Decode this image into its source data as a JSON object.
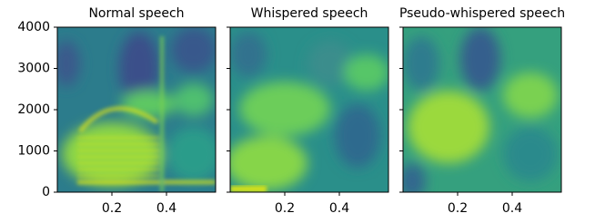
{
  "chart_data": [
    {
      "type": "spectrogram",
      "title": "Normal speech",
      "xlim": [
        0,
        0.58
      ],
      "xticks": [
        0.2,
        0.4
      ],
      "ylim": [
        0,
        4000
      ],
      "yticks": [
        0,
        1000,
        2000,
        3000,
        4000
      ]
    },
    {
      "type": "spectrogram",
      "title": "Whispered speech",
      "xlim": [
        0,
        0.58
      ],
      "xticks": [
        0.2,
        0.4
      ],
      "ylim": [
        0,
        4000
      ],
      "sharey": true
    },
    {
      "type": "spectrogram",
      "title": "Pseudo-whispered speech",
      "xlim": [
        0,
        0.58
      ],
      "xticks": [
        0.2,
        0.4
      ],
      "ylim": [
        0,
        4000
      ],
      "sharey": true
    }
  ]
}
